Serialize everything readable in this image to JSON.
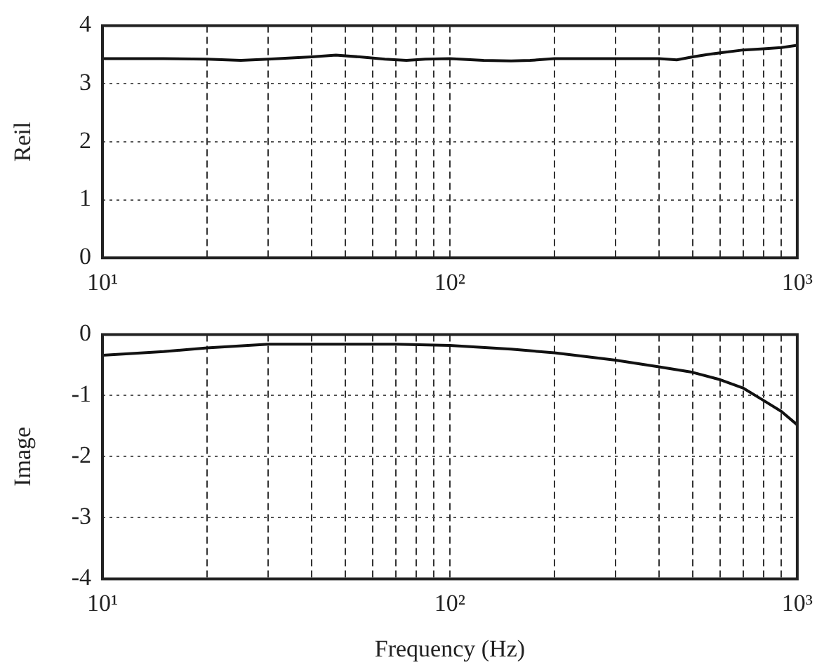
{
  "chart_data": [
    {
      "type": "line",
      "ylabel": "Reil",
      "x": [
        10,
        15,
        20,
        25,
        30,
        40,
        47,
        55,
        65,
        75,
        85,
        100,
        125,
        150,
        170,
        200,
        300,
        400,
        450,
        500,
        550,
        600,
        700,
        800,
        900,
        1000
      ],
      "series": [
        {
          "color": "#111111",
          "values": [
            3.43,
            3.43,
            3.42,
            3.4,
            3.42,
            3.46,
            3.49,
            3.46,
            3.42,
            3.4,
            3.42,
            3.43,
            3.4,
            3.39,
            3.4,
            3.43,
            3.43,
            3.43,
            3.41,
            3.46,
            3.5,
            3.53,
            3.58,
            3.6,
            3.62,
            3.66
          ]
        }
      ],
      "xlim": [
        10,
        1000
      ],
      "ylim": [
        0,
        4
      ],
      "xticks": [
        {
          "value": 10,
          "label": "10¹"
        },
        {
          "value": 20,
          "label": null
        },
        {
          "value": 30,
          "label": null
        },
        {
          "value": 40,
          "label": null
        },
        {
          "value": 50,
          "label": null
        },
        {
          "value": 60,
          "label": null
        },
        {
          "value": 70,
          "label": null
        },
        {
          "value": 80,
          "label": null
        },
        {
          "value": 90,
          "label": null
        },
        {
          "value": 100,
          "label": "10²"
        },
        {
          "value": 200,
          "label": null
        },
        {
          "value": 300,
          "label": null
        },
        {
          "value": 400,
          "label": null
        },
        {
          "value": 500,
          "label": null
        },
        {
          "value": 600,
          "label": null
        },
        {
          "value": 700,
          "label": null
        },
        {
          "value": 800,
          "label": null
        },
        {
          "value": 900,
          "label": null
        },
        {
          "value": 1000,
          "label": "10³"
        }
      ],
      "yticks": [
        0,
        1,
        2,
        3,
        4
      ],
      "log": "x",
      "grid": true,
      "marker": "none",
      "line_style": "solid"
    },
    {
      "type": "line",
      "xlabel": "Frequency (Hz)",
      "ylabel": "Image",
      "x": [
        10,
        15,
        20,
        30,
        40,
        50,
        70,
        100,
        150,
        200,
        300,
        400,
        500,
        600,
        700,
        800,
        900,
        1000
      ],
      "series": [
        {
          "color": "#111111",
          "values": [
            -0.34,
            -0.28,
            -0.22,
            -0.16,
            -0.16,
            -0.16,
            -0.16,
            -0.18,
            -0.24,
            -0.3,
            -0.42,
            -0.53,
            -0.62,
            -0.74,
            -0.88,
            -1.08,
            -1.26,
            -1.48
          ]
        }
      ],
      "xlim": [
        10,
        1000
      ],
      "ylim": [
        -4,
        0
      ],
      "xticks": [
        {
          "value": 10,
          "label": "10¹"
        },
        {
          "value": 20,
          "label": null
        },
        {
          "value": 30,
          "label": null
        },
        {
          "value": 40,
          "label": null
        },
        {
          "value": 50,
          "label": null
        },
        {
          "value": 60,
          "label": null
        },
        {
          "value": 70,
          "label": null
        },
        {
          "value": 80,
          "label": null
        },
        {
          "value": 90,
          "label": null
        },
        {
          "value": 100,
          "label": "10²"
        },
        {
          "value": 200,
          "label": null
        },
        {
          "value": 300,
          "label": null
        },
        {
          "value": 400,
          "label": null
        },
        {
          "value": 500,
          "label": null
        },
        {
          "value": 600,
          "label": null
        },
        {
          "value": 700,
          "label": null
        },
        {
          "value": 800,
          "label": null
        },
        {
          "value": 900,
          "label": null
        },
        {
          "value": 1000,
          "label": "10³"
        }
      ],
      "yticks": [
        -4,
        -3,
        -2,
        -1,
        0
      ],
      "log": "x",
      "grid": true,
      "marker": "none",
      "line_style": "solid"
    }
  ]
}
